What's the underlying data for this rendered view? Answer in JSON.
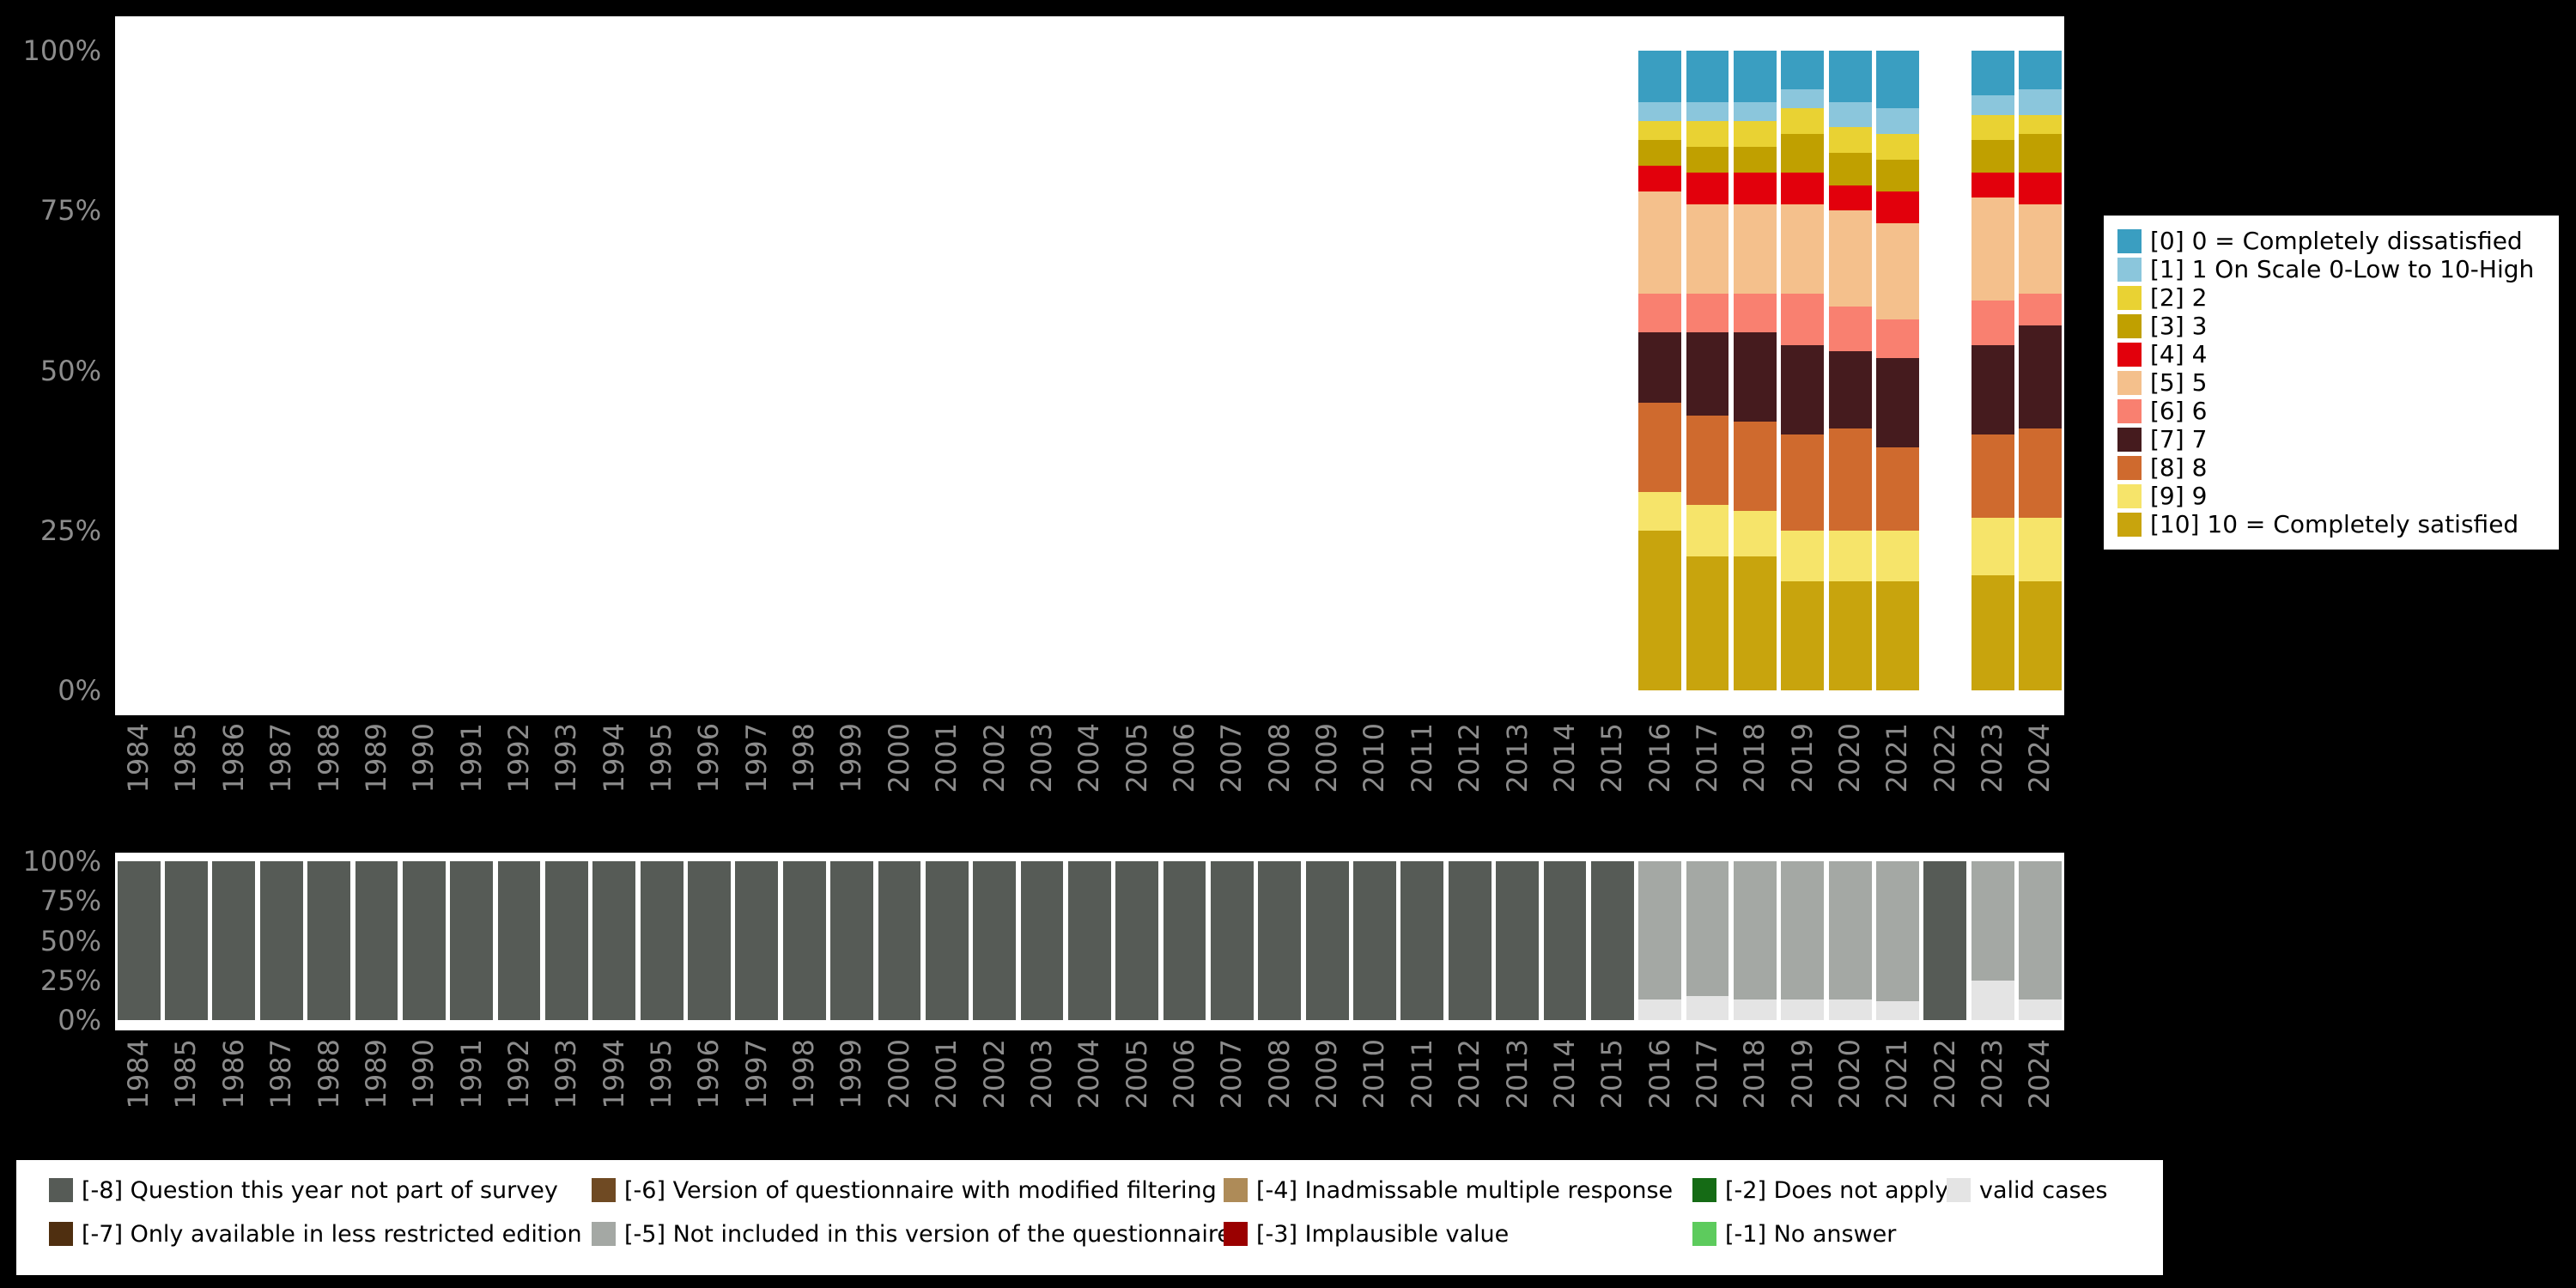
{
  "page": {
    "background": "#000000",
    "axis_text_color": "#8c8c8c"
  },
  "chart_data": [
    {
      "id": "distribution",
      "type": "bar",
      "subtype": "stacked-percent-column",
      "title": "",
      "xlabel": "",
      "ylabel": "",
      "ylim": [
        0,
        100
      ],
      "grid": false,
      "legend_position": "right",
      "x": [
        "1984",
        "1985",
        "1986",
        "1987",
        "1988",
        "1989",
        "1990",
        "1991",
        "1992",
        "1993",
        "1994",
        "1995",
        "1996",
        "1997",
        "1998",
        "1999",
        "2000",
        "2001",
        "2002",
        "2003",
        "2004",
        "2005",
        "2006",
        "2007",
        "2008",
        "2009",
        "2010",
        "2011",
        "2012",
        "2013",
        "2014",
        "2015",
        "2016",
        "2017",
        "2018",
        "2019",
        "2020",
        "2021",
        "2022",
        "2023",
        "2024"
      ],
      "yticks": [
        "100%",
        "75%",
        "50%",
        "25%",
        "0%"
      ],
      "series": [
        {
          "name": "[10] 10 = Completely satisfied",
          "color": "#C8A40D",
          "values": [
            0,
            0,
            0,
            0,
            0,
            0,
            0,
            0,
            0,
            0,
            0,
            0,
            0,
            0,
            0,
            0,
            0,
            0,
            0,
            0,
            0,
            0,
            0,
            0,
            0,
            0,
            0,
            0,
            0,
            0,
            0,
            0,
            25,
            21,
            21,
            17,
            17,
            17,
            0,
            18,
            17
          ]
        },
        {
          "name": "[9] 9",
          "color": "#F6E46A",
          "values": [
            0,
            0,
            0,
            0,
            0,
            0,
            0,
            0,
            0,
            0,
            0,
            0,
            0,
            0,
            0,
            0,
            0,
            0,
            0,
            0,
            0,
            0,
            0,
            0,
            0,
            0,
            0,
            0,
            0,
            0,
            0,
            0,
            6,
            8,
            7,
            8,
            8,
            8,
            0,
            9,
            10
          ]
        },
        {
          "name": "[8] 8",
          "color": "#CF6A2E",
          "values": [
            0,
            0,
            0,
            0,
            0,
            0,
            0,
            0,
            0,
            0,
            0,
            0,
            0,
            0,
            0,
            0,
            0,
            0,
            0,
            0,
            0,
            0,
            0,
            0,
            0,
            0,
            0,
            0,
            0,
            0,
            0,
            0,
            14,
            14,
            14,
            15,
            16,
            13,
            0,
            13,
            14
          ]
        },
        {
          "name": "[7] 7",
          "color": "#451B1E",
          "values": [
            0,
            0,
            0,
            0,
            0,
            0,
            0,
            0,
            0,
            0,
            0,
            0,
            0,
            0,
            0,
            0,
            0,
            0,
            0,
            0,
            0,
            0,
            0,
            0,
            0,
            0,
            0,
            0,
            0,
            0,
            0,
            0,
            11,
            13,
            14,
            14,
            12,
            14,
            0,
            14,
            16
          ]
        },
        {
          "name": "[6] 6",
          "color": "#F98070",
          "values": [
            0,
            0,
            0,
            0,
            0,
            0,
            0,
            0,
            0,
            0,
            0,
            0,
            0,
            0,
            0,
            0,
            0,
            0,
            0,
            0,
            0,
            0,
            0,
            0,
            0,
            0,
            0,
            0,
            0,
            0,
            0,
            0,
            6,
            6,
            6,
            8,
            7,
            6,
            0,
            7,
            5
          ]
        },
        {
          "name": "[5] 5",
          "color": "#F4C08C",
          "values": [
            0,
            0,
            0,
            0,
            0,
            0,
            0,
            0,
            0,
            0,
            0,
            0,
            0,
            0,
            0,
            0,
            0,
            0,
            0,
            0,
            0,
            0,
            0,
            0,
            0,
            0,
            0,
            0,
            0,
            0,
            0,
            0,
            16,
            14,
            14,
            14,
            15,
            15,
            0,
            16,
            14
          ]
        },
        {
          "name": "[4] 4",
          "color": "#E2000C",
          "values": [
            0,
            0,
            0,
            0,
            0,
            0,
            0,
            0,
            0,
            0,
            0,
            0,
            0,
            0,
            0,
            0,
            0,
            0,
            0,
            0,
            0,
            0,
            0,
            0,
            0,
            0,
            0,
            0,
            0,
            0,
            0,
            0,
            4,
            5,
            5,
            5,
            4,
            5,
            0,
            4,
            5
          ]
        },
        {
          "name": "[3] 3",
          "color": "#C0A000",
          "values": [
            0,
            0,
            0,
            0,
            0,
            0,
            0,
            0,
            0,
            0,
            0,
            0,
            0,
            0,
            0,
            0,
            0,
            0,
            0,
            0,
            0,
            0,
            0,
            0,
            0,
            0,
            0,
            0,
            0,
            0,
            0,
            0,
            4,
            4,
            4,
            6,
            5,
            5,
            0,
            5,
            6
          ]
        },
        {
          "name": "[2] 2",
          "color": "#E9D233",
          "values": [
            0,
            0,
            0,
            0,
            0,
            0,
            0,
            0,
            0,
            0,
            0,
            0,
            0,
            0,
            0,
            0,
            0,
            0,
            0,
            0,
            0,
            0,
            0,
            0,
            0,
            0,
            0,
            0,
            0,
            0,
            0,
            0,
            3,
            4,
            4,
            4,
            4,
            4,
            0,
            4,
            3
          ]
        },
        {
          "name": "[1] 1 On Scale 0-Low to 10-High",
          "color": "#8BC6DC",
          "values": [
            0,
            0,
            0,
            0,
            0,
            0,
            0,
            0,
            0,
            0,
            0,
            0,
            0,
            0,
            0,
            0,
            0,
            0,
            0,
            0,
            0,
            0,
            0,
            0,
            0,
            0,
            0,
            0,
            0,
            0,
            0,
            0,
            3,
            3,
            3,
            3,
            4,
            4,
            0,
            3,
            4
          ]
        },
        {
          "name": "[0] 0 = Completely dissatisfied",
          "color": "#3A9EC1",
          "values": [
            0,
            0,
            0,
            0,
            0,
            0,
            0,
            0,
            0,
            0,
            0,
            0,
            0,
            0,
            0,
            0,
            0,
            0,
            0,
            0,
            0,
            0,
            0,
            0,
            0,
            0,
            0,
            0,
            0,
            0,
            0,
            0,
            8,
            8,
            8,
            6,
            8,
            9,
            0,
            7,
            6
          ]
        }
      ]
    },
    {
      "id": "missings",
      "type": "bar",
      "subtype": "stacked-percent-column",
      "title": "",
      "xlabel": "",
      "ylabel": "",
      "ylim": [
        0,
        100
      ],
      "grid": false,
      "legend_position": "bottom",
      "x": [
        "1984",
        "1985",
        "1986",
        "1987",
        "1988",
        "1989",
        "1990",
        "1991",
        "1992",
        "1993",
        "1994",
        "1995",
        "1996",
        "1997",
        "1998",
        "1999",
        "2000",
        "2001",
        "2002",
        "2003",
        "2004",
        "2005",
        "2006",
        "2007",
        "2008",
        "2009",
        "2010",
        "2011",
        "2012",
        "2013",
        "2014",
        "2015",
        "2016",
        "2017",
        "2018",
        "2019",
        "2020",
        "2021",
        "2022",
        "2023",
        "2024"
      ],
      "yticks": [
        "100%",
        "75%",
        "50%",
        "25%",
        "0%"
      ],
      "series": [
        {
          "name": "valid cases",
          "color": "#E4E4E4",
          "values": [
            0,
            0,
            0,
            0,
            0,
            0,
            0,
            0,
            0,
            0,
            0,
            0,
            0,
            0,
            0,
            0,
            0,
            0,
            0,
            0,
            0,
            0,
            0,
            0,
            0,
            0,
            0,
            0,
            0,
            0,
            0,
            0,
            13,
            15,
            13,
            13,
            13,
            12,
            0,
            25,
            13
          ]
        },
        {
          "name": "[-5] Not included in this version of the questionnaire",
          "color": "#A4A8A4",
          "values": [
            0,
            0,
            0,
            0,
            0,
            0,
            0,
            0,
            0,
            0,
            0,
            0,
            0,
            0,
            0,
            0,
            0,
            0,
            0,
            0,
            0,
            0,
            0,
            0,
            0,
            0,
            0,
            0,
            0,
            0,
            0,
            0,
            87,
            85,
            87,
            87,
            87,
            88,
            0,
            75,
            87
          ]
        },
        {
          "name": "[-8] Question this year not part of survey",
          "color": "#565B56",
          "values": [
            100,
            100,
            100,
            100,
            100,
            100,
            100,
            100,
            100,
            100,
            100,
            100,
            100,
            100,
            100,
            100,
            100,
            100,
            100,
            100,
            100,
            100,
            100,
            100,
            100,
            100,
            100,
            100,
            100,
            100,
            100,
            100,
            0,
            0,
            0,
            0,
            0,
            0,
            100,
            0,
            0
          ]
        }
      ]
    }
  ],
  "missing_legend": {
    "columns": [
      [
        {
          "label": "[-8] Question this year not part of survey",
          "color": "#565B56"
        },
        {
          "label": "[-7] Only available in less restricted edition",
          "color": "#4F2F10"
        }
      ],
      [
        {
          "label": "[-6] Version of questionnaire with modified filtering",
          "color": "#6F4A23"
        },
        {
          "label": "[-5] Not included in this version of the questionnaire",
          "color": "#A4A8A4"
        }
      ],
      [
        {
          "label": "[-4] Inadmissable multiple response",
          "color": "#AE8B58"
        },
        {
          "label": "[-3] Implausible value",
          "color": "#9A0000"
        }
      ],
      [
        {
          "label": "[-2] Does not apply",
          "color": "#156B15"
        },
        {
          "label": "[-1] No answer",
          "color": "#5DCB5D"
        }
      ],
      [
        {
          "label": "valid cases",
          "color": "#E4E4E4"
        }
      ]
    ]
  }
}
